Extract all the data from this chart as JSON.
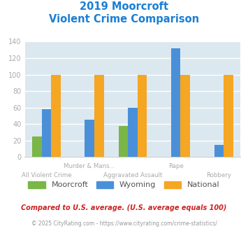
{
  "title_line1": "2019 Moorcroft",
  "title_line2": "Violent Crime Comparison",
  "title_color": "#1a7fd4",
  "categories": [
    "All Violent Crime",
    "Murder & Mans...",
    "Aggravated Assault",
    "Rape",
    "Robbery"
  ],
  "x_labels_top": [
    "",
    "Murder & Mans...",
    "",
    "Rape",
    ""
  ],
  "x_labels_bottom": [
    "All Violent Crime",
    "",
    "Aggravated Assault",
    "",
    "Robbery"
  ],
  "moorcroft": [
    25,
    0,
    38,
    0,
    0
  ],
  "wyoming": [
    58,
    45,
    60,
    132,
    15
  ],
  "national": [
    100,
    100,
    100,
    100,
    100
  ],
  "moorcroft_color": "#7ab648",
  "wyoming_color": "#4a90d9",
  "national_color": "#f5a623",
  "ylim": [
    0,
    140
  ],
  "yticks": [
    0,
    20,
    40,
    60,
    80,
    100,
    120,
    140
  ],
  "background_color": "#dce8ef",
  "grid_color": "#ffffff",
  "legend_labels": [
    "Moorcroft",
    "Wyoming",
    "National"
  ],
  "footnote1": "Compared to U.S. average. (U.S. average equals 100)",
  "footnote2": "© 2025 CityRating.com - https://www.cityrating.com/crime-statistics/",
  "footnote1_color": "#cc2222",
  "footnote2_color": "#999999",
  "tick_label_color": "#aaaaaa",
  "label_color": "#aaaaaa",
  "bar_width": 0.22
}
